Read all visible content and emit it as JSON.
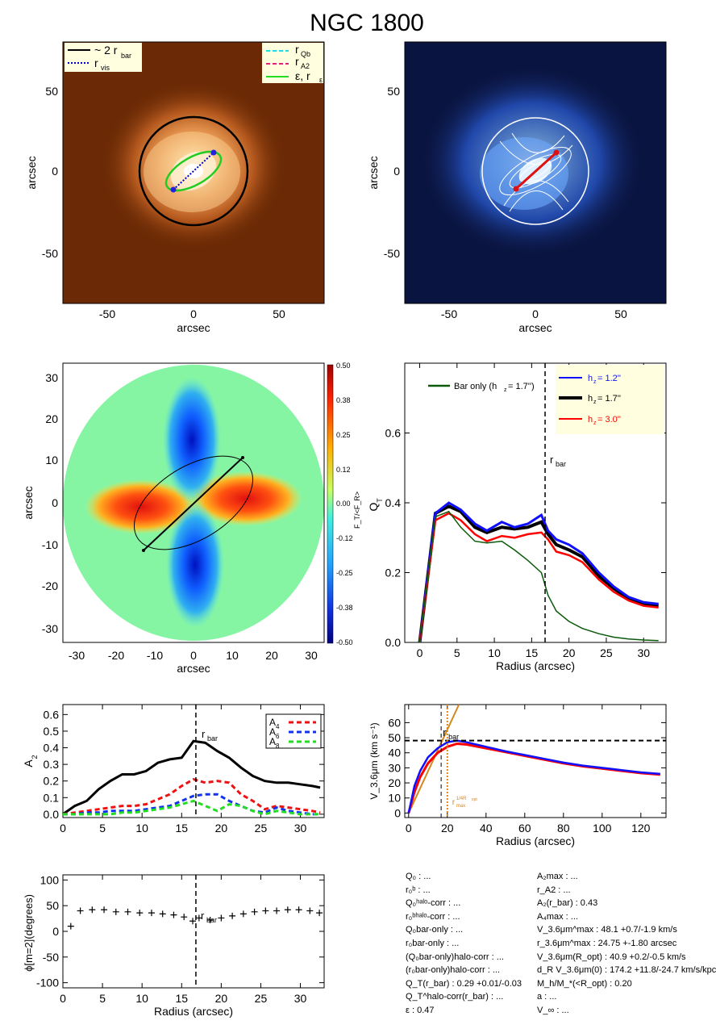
{
  "title": "NGC 1800",
  "colors": {
    "image_bg": "#6b2a05",
    "galaxy_core": "#fff6de",
    "blue_bg": "#0a1440",
    "bar_only": "#0a5a0a",
    "hz12": "#1010ff",
    "hz17": "#000000",
    "hz30": "#ff0000",
    "A4": "#ee1111",
    "A6": "#1133ee",
    "A8": "#22dd22",
    "orange": "#d4881e",
    "legend_bg": "#ffffe0"
  },
  "panel_image": {
    "xlabel": "arcsec",
    "ylabel": "arcsec",
    "xticks": [
      "-50",
      "0",
      "50"
    ],
    "yticks": [
      "50",
      "0",
      "-50"
    ],
    "legend_left": [
      "~ 2 r",
      "bar",
      "r",
      "vis"
    ],
    "legend_right": [
      "r",
      "Qb",
      "r",
      "A2",
      "ε, r",
      "ε"
    ]
  },
  "panel_contour": {
    "xlabel": "arcsec",
    "ylabel": "arcsec",
    "xticks": [
      "-50",
      "0",
      "50"
    ],
    "yticks": [
      "50",
      "0",
      "-50"
    ]
  },
  "panel_force": {
    "xlabel": "arcsec",
    "ylabel": "arcsec",
    "xticks": [
      "-30",
      "-20",
      "-10",
      "0",
      "10",
      "20",
      "30"
    ],
    "yticks": [
      "30",
      "20",
      "10",
      "0",
      "-10",
      "-20",
      "-30"
    ],
    "colorbar_label": "F_T/<F_R>",
    "colorbar_ticks": [
      "0.50",
      "0.38",
      "0.25",
      "0.12",
      "0.00",
      "-0.12",
      "-0.25",
      "-0.38",
      "-0.50"
    ]
  },
  "chart_data": [
    {
      "type": "line",
      "id": "QT",
      "xlabel": "Radius (arcsec)",
      "ylabel": "Q_T",
      "xlim": [
        -2,
        33
      ],
      "ylim": [
        0,
        0.8
      ],
      "xticks": [
        "0",
        "5",
        "10",
        "15",
        "20",
        "25",
        "30"
      ],
      "yticks": [
        "0.0",
        "0.2",
        "0.4",
        "0.6"
      ],
      "rbar": 16.8,
      "rbar_label": "r",
      "rbar_sub": "bar",
      "legend_bar_only": "Bar only (h",
      "legend_bar_only_val": "=   1.7'')",
      "legend_hz_prefix": "h",
      "x": [
        0,
        2.1,
        3.9,
        5.5,
        7.4,
        9.0,
        11.0,
        12.7,
        14.5,
        16.3,
        17.2,
        18.3,
        20.0,
        21.8,
        24.0,
        26.0,
        28.0,
        30.0,
        32.0
      ],
      "series": [
        {
          "name": "= 1.2''",
          "values": [
            0,
            0.37,
            0.4,
            0.38,
            0.34,
            0.32,
            0.345,
            0.33,
            0.34,
            0.365,
            0.32,
            0.295,
            0.28,
            0.255,
            0.2,
            0.16,
            0.13,
            0.115,
            0.11
          ]
        },
        {
          "name": "= 1.7''",
          "values": [
            0,
            0.37,
            0.39,
            0.375,
            0.33,
            0.315,
            0.33,
            0.325,
            0.33,
            0.345,
            0.31,
            0.28,
            0.265,
            0.245,
            0.19,
            0.155,
            0.125,
            0.11,
            0.105
          ]
        },
        {
          "name": "= 3.0''",
          "values": [
            0,
            0.35,
            0.37,
            0.35,
            0.31,
            0.29,
            0.305,
            0.3,
            0.31,
            0.315,
            0.295,
            0.26,
            0.25,
            0.23,
            0.18,
            0.145,
            0.12,
            0.105,
            0.1
          ]
        },
        {
          "name": "bar_only",
          "values": [
            0,
            0.36,
            0.375,
            0.33,
            0.29,
            0.285,
            0.29,
            0.265,
            0.235,
            0.2,
            0.135,
            0.09,
            0.06,
            0.04,
            0.025,
            0.015,
            0.01,
            0.007,
            0.005
          ]
        }
      ]
    },
    {
      "type": "line",
      "id": "A2",
      "ylabel": "A_2",
      "xlim": [
        0,
        33
      ],
      "ylim": [
        -0.02,
        0.66
      ],
      "xticks": [
        "0",
        "5",
        "10",
        "15",
        "20",
        "25",
        "30"
      ],
      "yticks": [
        "0.0",
        "0.1",
        "0.2",
        "0.3",
        "0.4",
        "0.5",
        "0.6"
      ],
      "rbar": 16.8,
      "rbar_label": "r",
      "rbar_sub": "bar",
      "legend": [
        "A",
        "4",
        "A",
        "6",
        "A",
        "8"
      ],
      "x": [
        0,
        1.5,
        3,
        4.5,
        6,
        7.5,
        9,
        10.5,
        12,
        13.5,
        15,
        16.5,
        18,
        19.5,
        21,
        22.5,
        24,
        25.5,
        27,
        28.5,
        30,
        31.5,
        32.5
      ],
      "series": [
        {
          "name": "A2",
          "values": [
            0.0,
            0.05,
            0.08,
            0.15,
            0.2,
            0.24,
            0.24,
            0.26,
            0.31,
            0.33,
            0.34,
            0.44,
            0.43,
            0.38,
            0.34,
            0.28,
            0.23,
            0.2,
            0.19,
            0.19,
            0.18,
            0.17,
            0.16
          ]
        },
        {
          "name": "A4",
          "values": [
            0.0,
            0.01,
            0.02,
            0.03,
            0.04,
            0.05,
            0.05,
            0.06,
            0.09,
            0.12,
            0.17,
            0.21,
            0.19,
            0.2,
            0.19,
            0.12,
            0.08,
            0.03,
            0.05,
            0.04,
            0.03,
            0.02,
            0.01
          ]
        },
        {
          "name": "A6",
          "values": [
            0.0,
            0.0,
            0.01,
            0.01,
            0.02,
            0.02,
            0.02,
            0.03,
            0.04,
            0.05,
            0.08,
            0.11,
            0.12,
            0.12,
            0.08,
            0.05,
            0.02,
            0.01,
            0.04,
            0.02,
            0.01,
            0.0,
            0.0
          ]
        },
        {
          "name": "A8",
          "values": [
            0.0,
            0.0,
            0.0,
            0.0,
            0.0,
            0.01,
            0.01,
            0.02,
            0.03,
            0.04,
            0.06,
            0.08,
            0.05,
            0.02,
            0.06,
            0.05,
            0.02,
            0.0,
            0.02,
            0.01,
            0.0,
            0.0,
            0.0
          ]
        }
      ]
    },
    {
      "type": "line",
      "id": "V",
      "xlabel": "Radius (arcsec)",
      "ylabel": "V_3.6μm (km s⁻¹)",
      "xlim": [
        -2,
        133
      ],
      "ylim": [
        -3,
        72
      ],
      "xticks": [
        "0",
        "20",
        "40",
        "60",
        "80",
        "100",
        "120"
      ],
      "yticks": [
        "0",
        "10",
        "20",
        "30",
        "40",
        "50",
        "60"
      ],
      "rbar": 16.8,
      "rbar_label": "r",
      "rbar_sub": "bar",
      "rmax_x": 20,
      "rmax_label": "r",
      "rmax_sub": "max",
      "rmax_sup": "1/4R",
      "rmax_sup_sub": "opt",
      "vmax": 48.1,
      "x": [
        0,
        3,
        6,
        10,
        15,
        20,
        25,
        30,
        40,
        50,
        60,
        70,
        80,
        90,
        100,
        110,
        120,
        130
      ],
      "series": [
        {
          "name": "upper",
          "values": [
            0,
            18,
            28,
            37,
            43,
            47,
            48.1,
            47,
            44,
            41,
            38.5,
            36,
            33.5,
            31.5,
            30,
            28.5,
            27,
            26
          ]
        },
        {
          "name": "lower",
          "values": [
            0,
            14,
            24,
            33,
            40,
            44,
            46,
            45.5,
            43,
            40.5,
            38,
            35.5,
            33,
            31,
            29.5,
            28,
            26.5,
            25.5
          ]
        },
        {
          "name": "orange",
          "x": [
            0,
            26
          ],
          "values": [
            0,
            72
          ]
        }
      ]
    },
    {
      "type": "scatter",
      "id": "phi",
      "xlabel": "Radius (arcsec)",
      "ylabel": "ϕ[m=2](degrees)",
      "xlim": [
        0,
        33
      ],
      "ylim": [
        -110,
        110
      ],
      "xticks": [
        "0",
        "5",
        "10",
        "15",
        "20",
        "25",
        "30"
      ],
      "yticks": [
        "100",
        "50",
        "0",
        "-50",
        "-100"
      ],
      "rbar": 16.8,
      "rbar_label": "r",
      "rbar_sub": "bar",
      "x": [
        1,
        2.2,
        3.7,
        5.2,
        6.7,
        8.2,
        9.7,
        11.2,
        12.6,
        14.0,
        15.3,
        16.4,
        17.2,
        18.6,
        20.0,
        21.4,
        22.8,
        24.2,
        25.6,
        27.0,
        28.4,
        29.8,
        31.2,
        32.4
      ],
      "values": [
        10,
        40,
        42,
        42,
        38,
        38,
        36,
        36,
        34,
        32,
        28,
        20,
        26,
        22,
        26,
        30,
        34,
        38,
        40,
        40,
        42,
        42,
        40,
        36
      ]
    }
  ],
  "info_left": [
    "Q₀ : ...",
    "r₀ᵇ : ...",
    "Q₀ʰᵃˡᵒ-corr : ...",
    "r₀ᵇʰᵃˡᵒ-corr : ...",
    "Q₀bar-only : ...",
    "r₀bar-only : ...",
    "(Q₀bar-only)halo-corr : ...",
    "(r₀bar-only)halo-corr : ...",
    "Q_T(r_bar) :  0.29 +0.01/-0.03",
    "Q_T^halo-corr(r_bar) : ...",
    "ε :  0.47"
  ],
  "info_right": [
    "A₂max : ...",
    "r_A2 : ...",
    "A₂(r_bar) :  0.43",
    "A₄max : ...",
    "V_3.6μm^max :  48.1 +0.7/-1.9 km/s",
    "r_3.6μm^max :  24.75 +-1.80 arcsec",
    "V_3.6μm(R_opt) :  40.9 +0.2/-0.5 km/s",
    "d_R V_3.6μm(0) :  174.2 +11.8/-24.7 km/s/kpc",
    "M_h/M_*(<R_opt) :  0.20",
    "a : ...",
    "V_∞ : ..."
  ]
}
